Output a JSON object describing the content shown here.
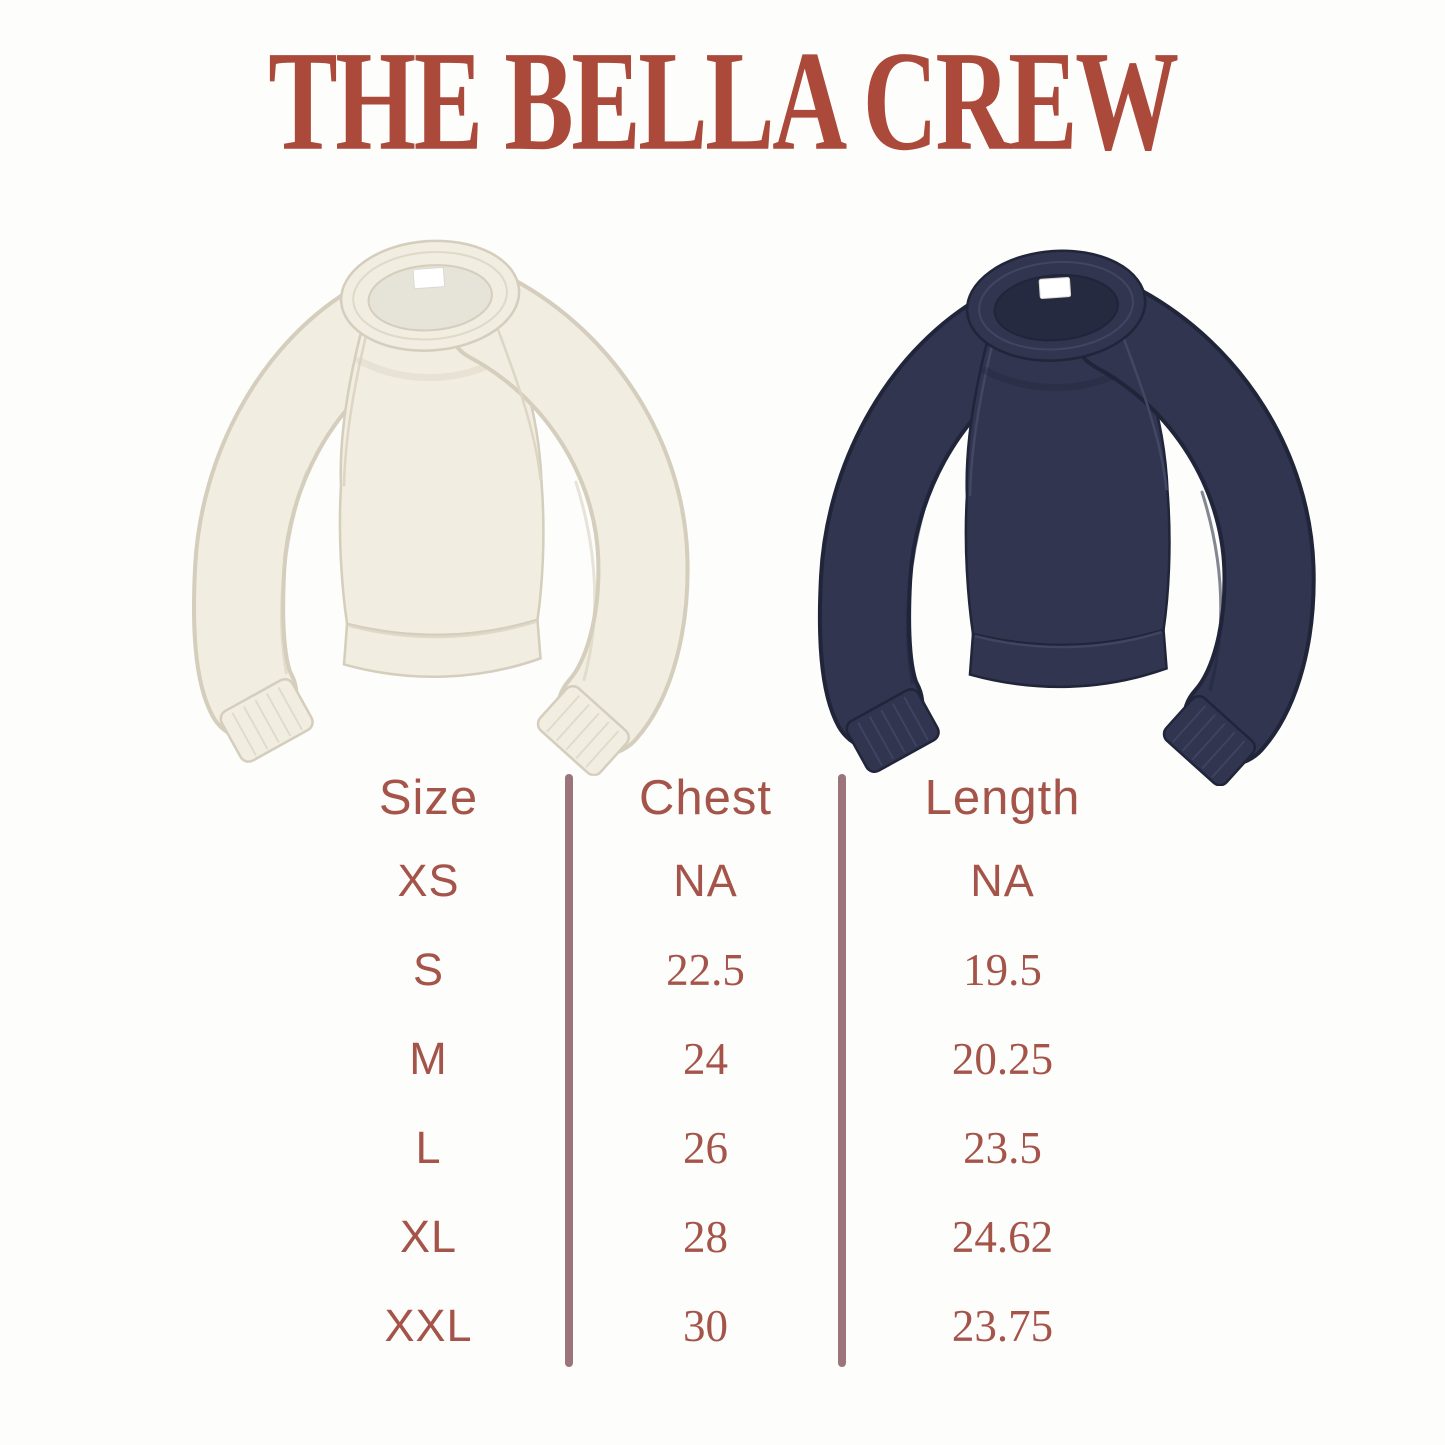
{
  "title": "THE BELLA CREW",
  "colors": {
    "title": "#ab4a3a",
    "table_text": "#a5544a",
    "divider": "#9c747b",
    "cream_body": "#f1ede1",
    "navy_body": "#313550",
    "neck_tag": "#ffffff",
    "background": "#fdfdfc"
  },
  "products": [
    {
      "id": "cream-sweatshirt",
      "label": "cream raglan crewneck sweatshirt"
    },
    {
      "id": "navy-sweatshirt",
      "label": "navy raglan crewneck sweatshirt"
    }
  ],
  "size_chart": {
    "columns": [
      "Size",
      "Chest",
      "Length"
    ],
    "rows": [
      {
        "size": "XS",
        "chest": "NA",
        "length": "NA"
      },
      {
        "size": "S",
        "chest": "22.5",
        "length": "19.5"
      },
      {
        "size": "M",
        "chest": "24",
        "length": "20.25"
      },
      {
        "size": "L",
        "chest": "26",
        "length": "23.5"
      },
      {
        "size": "XL",
        "chest": "28",
        "length": "24.62"
      },
      {
        "size": "XXL",
        "chest": "30",
        "length": "23.75"
      }
    ]
  }
}
